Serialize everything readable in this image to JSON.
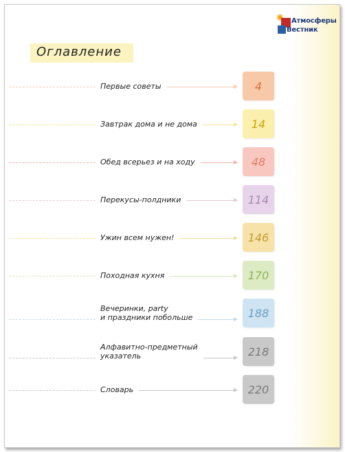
{
  "logo": {
    "line1": "Атмосферы",
    "line2": "Вестник",
    "colors": {
      "red": "#c22a2a",
      "blue": "#2a5fa8",
      "sun": "#f4a300",
      "text": "#1d3a7a"
    }
  },
  "title": "Оглавление",
  "entries": [
    {
      "label": "Первые советы",
      "page": "4",
      "box_color": "#f8c9a8",
      "num_color": "#e06b3a",
      "line_color": "#f6c9b0"
    },
    {
      "label": "Завтрак дома и не дома",
      "page": "14",
      "box_color": "#fbefae",
      "num_color": "#c9a400",
      "line_color": "#f4e39a"
    },
    {
      "label": "Обед всерьез и на ходу",
      "page": "48",
      "box_color": "#f8c8c0",
      "num_color": "#e07a6a",
      "line_color": "#f3b3a8"
    },
    {
      "label": "Перекусы-полдники",
      "page": "114",
      "box_color": "#e8d4ea",
      "num_color": "#a68ab0",
      "line_color": "#e6c8d8"
    },
    {
      "label": "Ужин всем нужен!",
      "page": "146",
      "box_color": "#f7e3a9",
      "num_color": "#c29a30",
      "line_color": "#f3dc9a"
    },
    {
      "label": "Походная кухня",
      "page": "170",
      "box_color": "#dcebc3",
      "num_color": "#8fb35a",
      "line_color": "#d9e8b8"
    },
    {
      "label": "Вечеринки, party",
      "label2": "и праздники побольше",
      "page": "188",
      "box_color": "#cfe4f2",
      "num_color": "#6d9ec2",
      "line_color": "#c2dbee"
    },
    {
      "label": "Алфавитно-предметный",
      "label2": "указатель",
      "page": "218",
      "box_color": "#c9c9c9",
      "num_color": "#7a7a7a",
      "line_color": "#c8c8c8"
    },
    {
      "label": "Словарь",
      "page": "220",
      "box_color": "#c9c9c9",
      "num_color": "#7a7a7a",
      "line_color": "#c8c8c8"
    }
  ]
}
